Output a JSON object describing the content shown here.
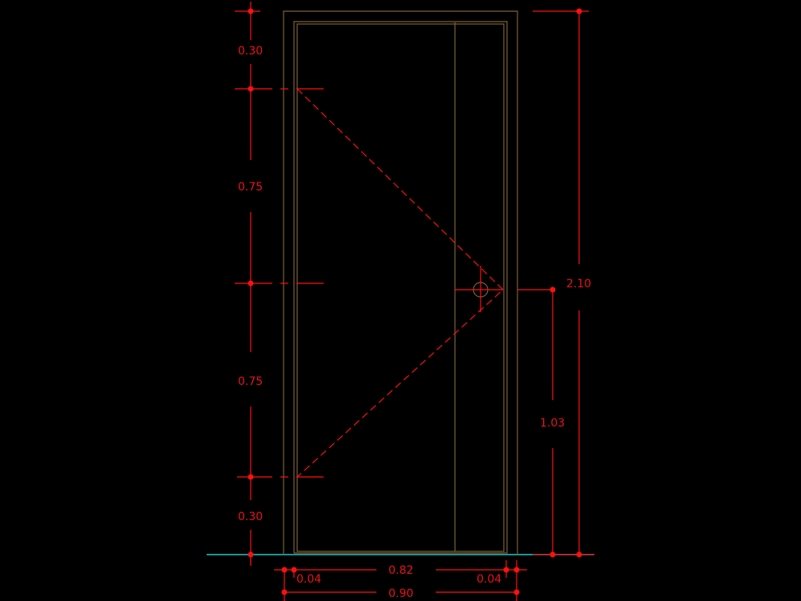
{
  "drawing": {
    "colors": {
      "background": "#000000",
      "dimension": "#ff1010",
      "frame": "#7d6136",
      "ground_line": "#22c8c8"
    },
    "left_dimensions": [
      "0.30",
      "0.75",
      "0.75",
      "0.30"
    ],
    "right_dimensions": {
      "total_height": "2.10",
      "handle_height": "1.03"
    },
    "bottom_dimensions": {
      "jamb_left": "0.04",
      "leaf_width": "0.82",
      "jamb_right": "0.04",
      "total_width": "0.90"
    }
  }
}
